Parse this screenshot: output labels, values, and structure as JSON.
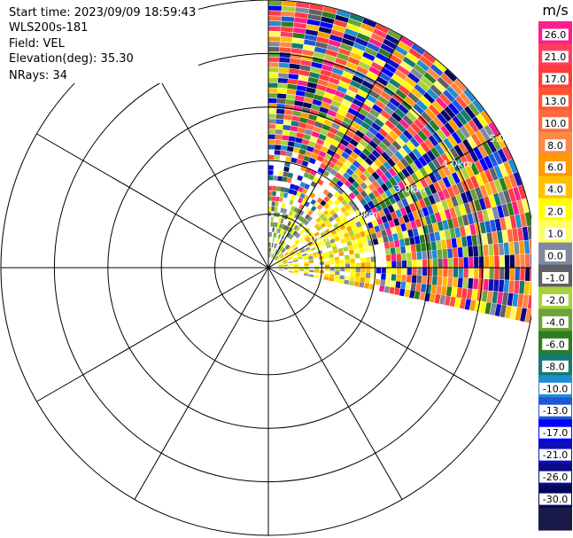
{
  "header": {
    "start_time": "Start time: 2023/09/09 18:59:43",
    "instrument": "WLS200s-181",
    "field": "Field: VEL",
    "elevation": "Elevation(deg): 35.30",
    "nrays": "NRays: 34"
  },
  "chart_data": {
    "type": "heatmap",
    "projection": "polar",
    "field": "VEL",
    "units": "m/s",
    "rings_km": [
      1,
      2,
      3,
      4,
      5
    ],
    "ring_labels": [
      "1.0km",
      "2.0km",
      "3.0km",
      "4.0km",
      "5.0km"
    ],
    "spokes_deg": [
      0,
      30,
      60,
      90,
      120,
      150,
      180,
      210,
      240,
      270,
      300,
      330
    ],
    "scan_azimuth_deg": [
      0,
      102
    ],
    "nrays": 34,
    "range_km_max": 5.0,
    "colorbar": {
      "label": "m/s",
      "ticks": [
        "26.0",
        "21.0",
        "17.0",
        "13.0",
        "10.0",
        "8.0",
        "6.0",
        "4.0",
        "2.0",
        "1.0",
        "0.0",
        "-1.0",
        "-2.0",
        "-4.0",
        "-6.0",
        "-8.0",
        "-10.0",
        "-13.0",
        "-17.0",
        "-21.0",
        "-26.0",
        "-30.0"
      ],
      "colors": [
        "#ff1c8c",
        "#ff3e5f",
        "#ff3c3c",
        "#ff5533",
        "#ff6a3e",
        "#ff8844",
        "#ff9a00",
        "#ffc000",
        "#ffff00",
        "#ffff66",
        "#7f8a9e",
        "#606066",
        "#a8d23a",
        "#6aa43a",
        "#2e7c1e",
        "#137b6e",
        "#1f8ed0",
        "#2057d8",
        "#0000ff",
        "#1010b8",
        "#0a0a88",
        "#05055a",
        "#1a1a4a"
      ]
    }
  }
}
